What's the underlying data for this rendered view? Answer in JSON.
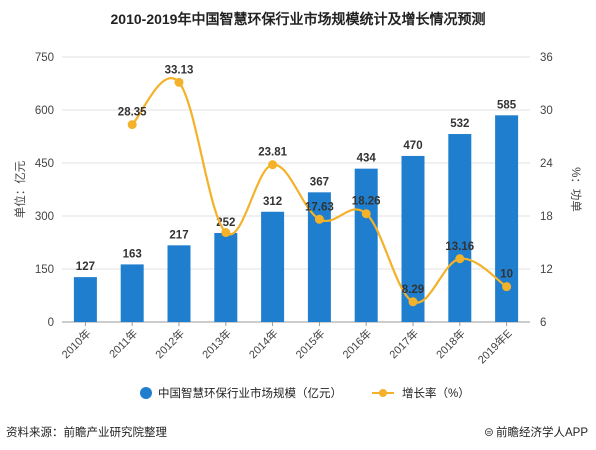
{
  "title": "2010-2019年中国智慧环保行业市场规模统计及增长情况预测",
  "source": "资料来源：前瞻产业研究院整理",
  "brand": "前瞻经济学人APP",
  "brand_icon": "qianzhan-logo-icon",
  "colors": {
    "bar": "#1f7fce",
    "line": "#f4b12a",
    "grid": "#e2e2e2",
    "axis": "#555555"
  },
  "chart_data": {
    "type": "bar",
    "categories": [
      "2010年",
      "2011年",
      "2012年",
      "2013年",
      "2014年",
      "2015年",
      "2016年",
      "2017年",
      "2018年",
      "2019年E"
    ],
    "series": [
      {
        "name": "中国智慧环保行业市场规模（亿元）",
        "type": "bar",
        "axis": "left",
        "values": [
          127,
          163,
          217,
          252,
          312,
          367,
          434,
          470,
          532,
          585
        ]
      },
      {
        "name": "增长率（%）",
        "type": "line",
        "axis": "right",
        "values": [
          null,
          28.35,
          33.13,
          16.13,
          23.81,
          17.63,
          18.26,
          8.29,
          13.16,
          10
        ]
      }
    ],
    "bar_labels": [
      "127",
      "163",
      "217",
      "252",
      "312",
      "367",
      "434",
      "470",
      "532",
      "585"
    ],
    "line_labels": [
      "",
      "28.35",
      "33.13",
      "",
      "23.81",
      "17.63",
      "18.26",
      "8.29",
      "13.16",
      "10"
    ],
    "ylabel_left": "单位：亿元",
    "ylabel_right": "%：功单",
    "ylim_left": [
      0,
      750
    ],
    "yticks_left": [
      "0",
      "150",
      "300",
      "450",
      "600",
      "750"
    ],
    "ylim_right": [
      6,
      36
    ],
    "yticks_right": [
      "6",
      "12",
      "18",
      "24",
      "30",
      "36"
    ],
    "grid": true,
    "legend_position": "bottom"
  }
}
